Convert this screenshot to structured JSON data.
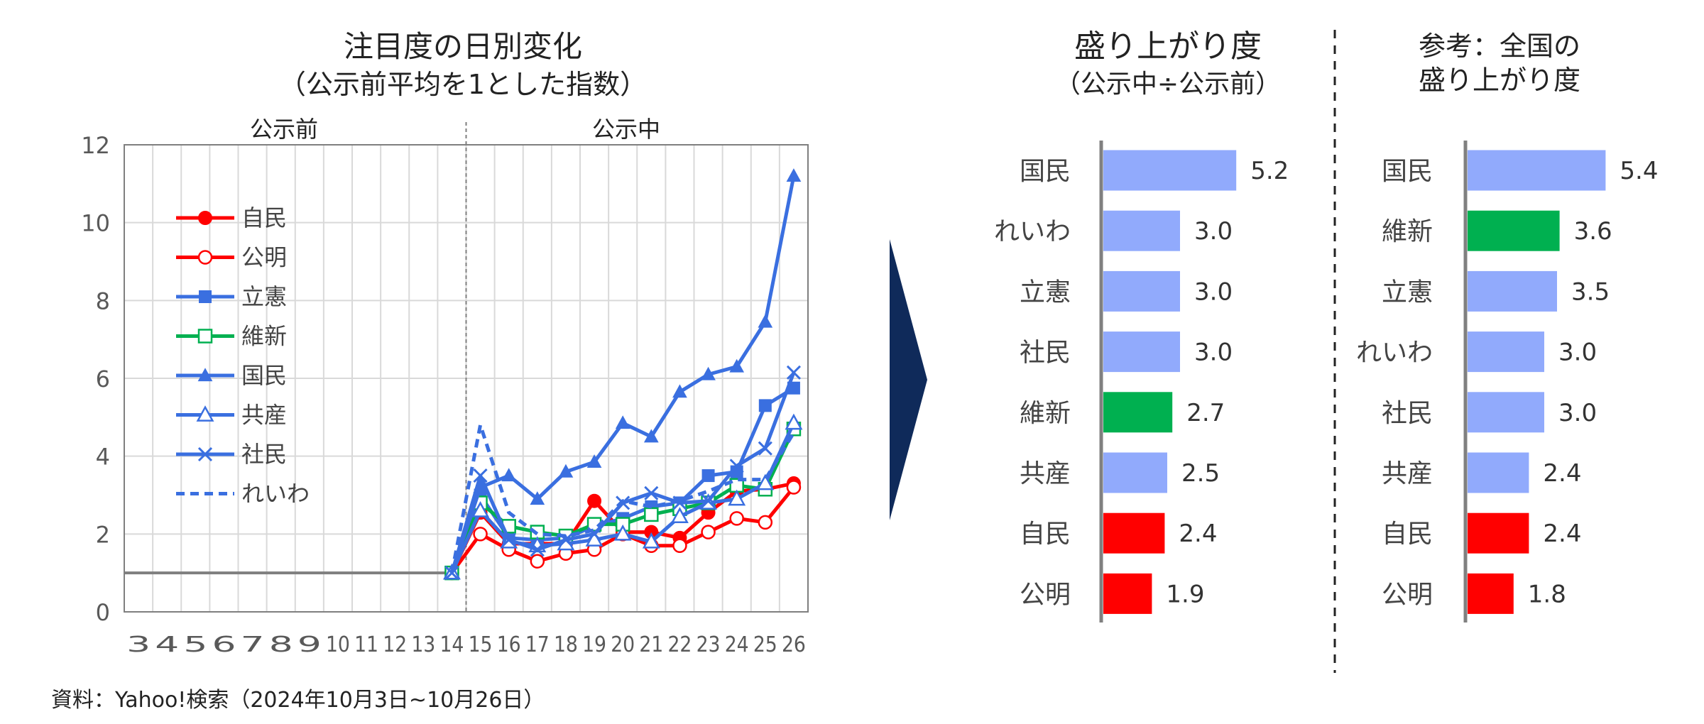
{
  "line_chart": {
    "title": "注目度の日別変化",
    "subtitle": "（公示前平均を1とした指数）",
    "region_before": "公示前",
    "region_during": "公示中",
    "legend": [
      {
        "name": "自民",
        "color": "#ff0000",
        "marker": "filled-circle",
        "dash": false
      },
      {
        "name": "公明",
        "color": "#ff0000",
        "marker": "open-circle",
        "dash": false
      },
      {
        "name": "立憲",
        "color": "#3a6fe0",
        "marker": "filled-square",
        "dash": false
      },
      {
        "name": "維新",
        "color": "#00b050",
        "marker": "open-square",
        "dash": false
      },
      {
        "name": "国民",
        "color": "#3a6fe0",
        "marker": "filled-triangle",
        "dash": false
      },
      {
        "name": "共産",
        "color": "#3a6fe0",
        "marker": "open-triangle",
        "dash": false
      },
      {
        "name": "社民",
        "color": "#3a6fe0",
        "marker": "x",
        "dash": false
      },
      {
        "name": "れいわ",
        "color": "#3a6fe0",
        "marker": "none",
        "dash": true
      }
    ]
  },
  "bar_chart_1": {
    "title": "盛り上がり度",
    "subtitle": "（公示中÷公示前）"
  },
  "bar_chart_2": {
    "title_line1": "参考：全国の",
    "title_line2": "盛り上がり度"
  },
  "source_note": "資料：Yahoo!検索（2024年10月3日~10月26日）",
  "colors": {
    "blue_bar": "#91aafc",
    "green_bar": "#00b050",
    "red_bar": "#ff0000",
    "line_blue": "#3a6fe0",
    "arrow": "#0f2a5a"
  },
  "chart_data": [
    {
      "type": "line",
      "title": "注目度の日別変化（公示前平均を1とした指数）",
      "xlabel": "",
      "ylabel": "",
      "x": [
        3,
        4,
        5,
        6,
        7,
        8,
        9,
        10,
        11,
        12,
        13,
        14,
        15,
        16,
        17,
        18,
        19,
        20,
        21,
        22,
        23,
        24,
        25,
        26
      ],
      "xlim": [
        2.5,
        26.5
      ],
      "ylim": [
        0,
        12
      ],
      "yticks": [
        0,
        2,
        4,
        6,
        8,
        10,
        12
      ],
      "divider_x": 14.5,
      "baseline": {
        "name": "公示前",
        "x": [
          2.5,
          14
        ],
        "y": [
          1,
          1
        ],
        "color": "#7f7f7f"
      },
      "series": [
        {
          "name": "自民",
          "x": [
            14,
            15,
            16,
            17,
            18,
            19,
            20,
            21,
            22,
            23,
            24,
            25,
            26
          ],
          "values": [
            1.0,
            2.55,
            1.75,
            1.75,
            1.75,
            2.85,
            2.05,
            2.05,
            1.9,
            2.55,
            3.1,
            3.15,
            3.3
          ]
        },
        {
          "name": "公明",
          "x": [
            14,
            15,
            16,
            17,
            18,
            19,
            20,
            21,
            22,
            23,
            24,
            25,
            26
          ],
          "values": [
            1.0,
            2.0,
            1.6,
            1.3,
            1.5,
            1.6,
            2.0,
            1.7,
            1.7,
            2.05,
            2.4,
            2.3,
            3.2
          ]
        },
        {
          "name": "立憲",
          "x": [
            14,
            15,
            16,
            17,
            18,
            19,
            20,
            21,
            22,
            23,
            24,
            25,
            26
          ],
          "values": [
            1.0,
            3.0,
            1.9,
            1.85,
            1.9,
            2.2,
            2.4,
            2.7,
            2.8,
            3.5,
            3.6,
            5.3,
            5.75
          ]
        },
        {
          "name": "維新",
          "x": [
            14,
            15,
            16,
            17,
            18,
            19,
            20,
            21,
            22,
            23,
            24,
            25,
            26
          ],
          "values": [
            1.0,
            2.8,
            2.2,
            2.05,
            1.95,
            2.25,
            2.25,
            2.5,
            2.65,
            2.8,
            3.25,
            3.15,
            4.7
          ]
        },
        {
          "name": "国民",
          "x": [
            14,
            15,
            16,
            17,
            18,
            19,
            20,
            21,
            22,
            23,
            24,
            25,
            26
          ],
          "values": [
            1.0,
            3.2,
            3.5,
            2.9,
            3.6,
            3.85,
            4.85,
            4.5,
            5.65,
            6.1,
            6.3,
            7.45,
            11.2
          ]
        },
        {
          "name": "共産",
          "x": [
            14,
            15,
            16,
            17,
            18,
            19,
            20,
            21,
            22,
            23,
            24,
            25,
            26
          ],
          "values": [
            1.0,
            2.6,
            1.8,
            1.7,
            1.75,
            1.85,
            2.0,
            1.8,
            2.45,
            2.8,
            2.9,
            3.3,
            4.85
          ]
        },
        {
          "name": "社民",
          "x": [
            14,
            15,
            16,
            17,
            18,
            19,
            20,
            21,
            22,
            23,
            24,
            25,
            26
          ],
          "values": [
            1.0,
            3.5,
            1.85,
            1.6,
            1.85,
            2.0,
            2.8,
            3.05,
            2.8,
            2.85,
            3.75,
            4.2,
            6.15
          ]
        },
        {
          "name": "れいわ",
          "x": [
            14,
            15,
            16,
            17,
            18,
            19,
            20,
            21,
            22,
            23,
            24,
            25,
            26
          ],
          "values": [
            1.0,
            4.8,
            2.55,
            2.0,
            1.95,
            2.1,
            2.85,
            2.7,
            2.85,
            3.1,
            3.4,
            3.4,
            4.6
          ]
        }
      ]
    },
    {
      "type": "bar",
      "orientation": "horizontal",
      "title": "盛り上がり度（公示中÷公示前）",
      "categories": [
        "国民",
        "れいわ",
        "立憲",
        "社民",
        "維新",
        "共産",
        "自民",
        "公明"
      ],
      "values": [
        5.2,
        3.0,
        3.0,
        3.0,
        2.7,
        2.5,
        2.4,
        1.9
      ],
      "labels": [
        "5.2",
        "3.0",
        "3.0",
        "3.0",
        "2.7",
        "2.5",
        "2.4",
        "1.9"
      ],
      "colors": [
        "#91aafc",
        "#91aafc",
        "#91aafc",
        "#91aafc",
        "#00b050",
        "#91aafc",
        "#ff0000",
        "#ff0000"
      ]
    },
    {
      "type": "bar",
      "orientation": "horizontal",
      "title": "参考：全国の盛り上がり度",
      "categories": [
        "国民",
        "維新",
        "立憲",
        "れいわ",
        "社民",
        "共産",
        "自民",
        "公明"
      ],
      "values": [
        5.4,
        3.6,
        3.5,
        3.0,
        3.0,
        2.4,
        2.4,
        1.8
      ],
      "labels": [
        "5.4",
        "3.6",
        "3.5",
        "3.0",
        "3.0",
        "2.4",
        "2.4",
        "1.8"
      ],
      "colors": [
        "#91aafc",
        "#00b050",
        "#91aafc",
        "#91aafc",
        "#91aafc",
        "#91aafc",
        "#ff0000",
        "#ff0000"
      ]
    }
  ]
}
